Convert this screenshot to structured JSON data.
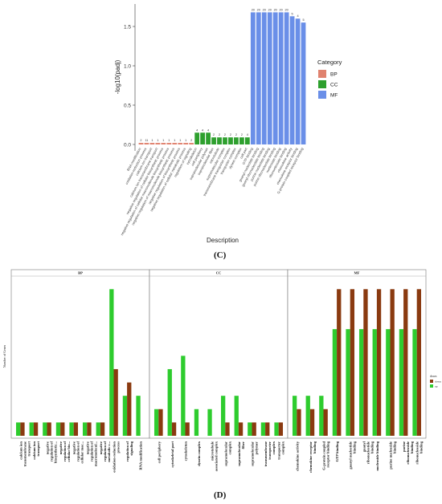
{
  "panels": {
    "c_label": "(C)",
    "d_label": "(D)"
  },
  "chart_data": [
    {
      "type": "bar",
      "panel": "C",
      "xlabel": "Description",
      "ylabel": "-log10(padj)",
      "ylim": [
        0,
        1.8
      ],
      "yticks": [
        0.0,
        0.5,
        1.0,
        1.5
      ],
      "legend": {
        "title": "Category",
        "placement": "right",
        "entries": [
          {
            "name": "BP",
            "color": "#e0826f"
          },
          {
            "name": "CC",
            "color": "#2ea02e"
          },
          {
            "name": "MF",
            "color": "#6a8fe8"
          }
        ]
      },
      "categories": [
        "RNA modification",
        "oxidation-reduction process",
        "calcium ion transport",
        "calcium ion transmembrane transport",
        "negative regulation of cellular biosynthetic process",
        "negative regulation of cellular macromolecule biosynthetic process",
        "negative regulation of macromolecule biosynthetic process",
        "negative regulation of biosynthetic process",
        "negative regulation of cellular metabolic process",
        "regulation of signaling",
        "cytoskeleton",
        "cell periphery",
        "supramolecular polymer",
        "supramolecular fiber",
        "microtubule",
        "supramolecular complex",
        "transmembrane transporter complex",
        "transporter complex",
        "dynein complex",
        "cell part",
        "GTP binding",
        "guanyl nucleotide binding",
        "guanyl ribonucleotide binding",
        "purine nucleotide binding",
        "purine ribonucleotide binding",
        "nucleoside binding",
        "ribonucleoside binding",
        "chemokine activity",
        "chemokine receptor binding",
        "G-protein coupled receptor binding"
      ],
      "values": [
        0.02,
        0.02,
        0.02,
        0.02,
        0.02,
        0.02,
        0.02,
        0.02,
        0.02,
        0.02,
        0.15,
        0.15,
        0.15,
        0.09,
        0.09,
        0.09,
        0.09,
        0.09,
        0.09,
        0.09,
        1.68,
        1.68,
        1.68,
        1.68,
        1.68,
        1.68,
        1.68,
        1.63,
        1.6,
        1.55
      ],
      "category_group": [
        "BP",
        "BP",
        "BP",
        "BP",
        "BP",
        "BP",
        "BP",
        "BP",
        "BP",
        "BP",
        "CC",
        "CC",
        "CC",
        "CC",
        "CC",
        "CC",
        "CC",
        "CC",
        "CC",
        "CC",
        "MF",
        "MF",
        "MF",
        "MF",
        "MF",
        "MF",
        "MF",
        "MF",
        "MF",
        "MF"
      ],
      "bar_labels": [
        "2",
        "11",
        "1",
        "1",
        "1",
        "1",
        "1",
        "1",
        "1",
        "2",
        "4",
        "4",
        "4",
        "2",
        "2",
        "2",
        "2",
        "2",
        "2",
        "4",
        "20",
        "20",
        "20",
        "20",
        "20",
        "20",
        "20",
        "5",
        "4",
        "5"
      ]
    },
    {
      "type": "bar",
      "panel": "D",
      "ylabel": "Number of Genes",
      "legend": {
        "title": "down",
        "placement": "right",
        "entries": [
          {
            "name": "down",
            "color": "#8a3a10"
          },
          {
            "name": "up",
            "color": "#2ecc2e"
          }
        ]
      },
      "facets": [
        {
          "name": "BP",
          "categories": [
            "calcium ion transmembrane transport",
            "calcium ion transport",
            "negative regulation of biosynthetic...",
            "negative regulation of cellular bio...",
            "negative regulation of cellular mac...",
            "negative regulation of macromolecul...",
            "negative regulation of metabolic c...",
            "oxidation-reduction process",
            "regulation of signaling",
            "RNA modification"
          ],
          "series": [
            {
              "name": "up",
              "values": [
                1,
                1,
                1,
                1,
                1,
                1,
                1,
                11,
                3,
                3
              ]
            },
            {
              "name": "down",
              "values": [
                1,
                1,
                1,
                1,
                1,
                1,
                1,
                5,
                4,
                0
              ]
            }
          ]
        },
        {
          "name": "CC",
          "categories": [
            "cell periphery",
            "cytoskeletal part",
            "cytoskeleton",
            "dynein complex",
            "microtubule associated complex",
            "supramolecular complex",
            "supramolecular fiber",
            "supramolecular polymer",
            "transmembrane transporter complex",
            "transporter complex"
          ],
          "series": [
            {
              "name": "up",
              "values": [
                2,
                5,
                6,
                2,
                2,
                3,
                3,
                1,
                1,
                1
              ]
            },
            {
              "name": "down",
              "values": [
                2,
                1,
                1,
                0,
                0,
                1,
                1,
                1,
                1,
                1
              ]
            }
          ]
        },
        {
          "name": "MF",
          "categories": [
            "chemokine activity",
            "chemokine receptor binding",
            "G-protein coupled receptor binding",
            "GTP binding",
            "guanyl nucleotide binding",
            "guanyl ribonucleotide binding",
            "nucleoside binding",
            "purine nucleoside binding",
            "purine ribonucleoside binding",
            "ribonucleoside binding"
          ],
          "series": [
            {
              "name": "up",
              "values": [
                3,
                3,
                3,
                8,
                8,
                8,
                8,
                8,
                8,
                8
              ]
            },
            {
              "name": "down",
              "values": [
                2,
                2,
                2,
                11,
                11,
                11,
                11,
                11,
                11,
                11
              ]
            }
          ]
        }
      ],
      "ylim": [
        0,
        12
      ]
    }
  ]
}
